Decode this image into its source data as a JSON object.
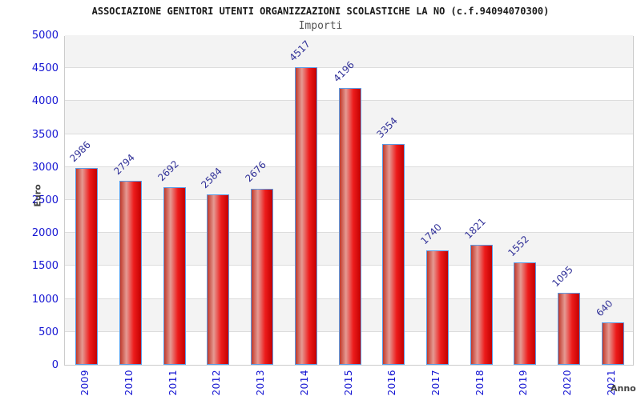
{
  "chart_data": {
    "type": "bar",
    "title": "ASSOCIAZIONE GENITORI UTENTI ORGANIZZAZIONI SCOLASTICHE LA NO (c.f.94094070300)",
    "subtitle": "Importi",
    "xlabel": "Anno",
    "ylabel": "Euro",
    "categories": [
      "2009",
      "2010",
      "2011",
      "2012",
      "2013",
      "2014",
      "2015",
      "2016",
      "2017",
      "2018",
      "2019",
      "2020",
      "2021"
    ],
    "values": [
      2986,
      2794,
      2692,
      2584,
      2676,
      4517,
      4196,
      3354,
      1740,
      1821,
      1552,
      1095,
      640
    ],
    "ylim": [
      0,
      5000
    ],
    "ytick_step": 500,
    "grid": true,
    "legend": "none",
    "band_ranges": [
      [
        500,
        1000
      ],
      [
        1500,
        2000
      ],
      [
        2500,
        3000
      ],
      [
        3500,
        4000
      ],
      [
        4500,
        5000
      ]
    ],
    "colors": {
      "bar_border": "#5b9ce6",
      "bar_gradient_left": "#c0392b",
      "bar_gradient_light": "#e59a93",
      "bar_gradient_mid": "#ed1c1c",
      "bar_gradient_right": "#c40000",
      "tick_label": "#1414d2",
      "value_label": "#333399",
      "axis_title": "#444444",
      "band": "#f3f3f3",
      "gridline": "#dddddd",
      "plot_border": "#cccccc",
      "title": "#1a1a1a",
      "subtitle": "#555555"
    }
  }
}
